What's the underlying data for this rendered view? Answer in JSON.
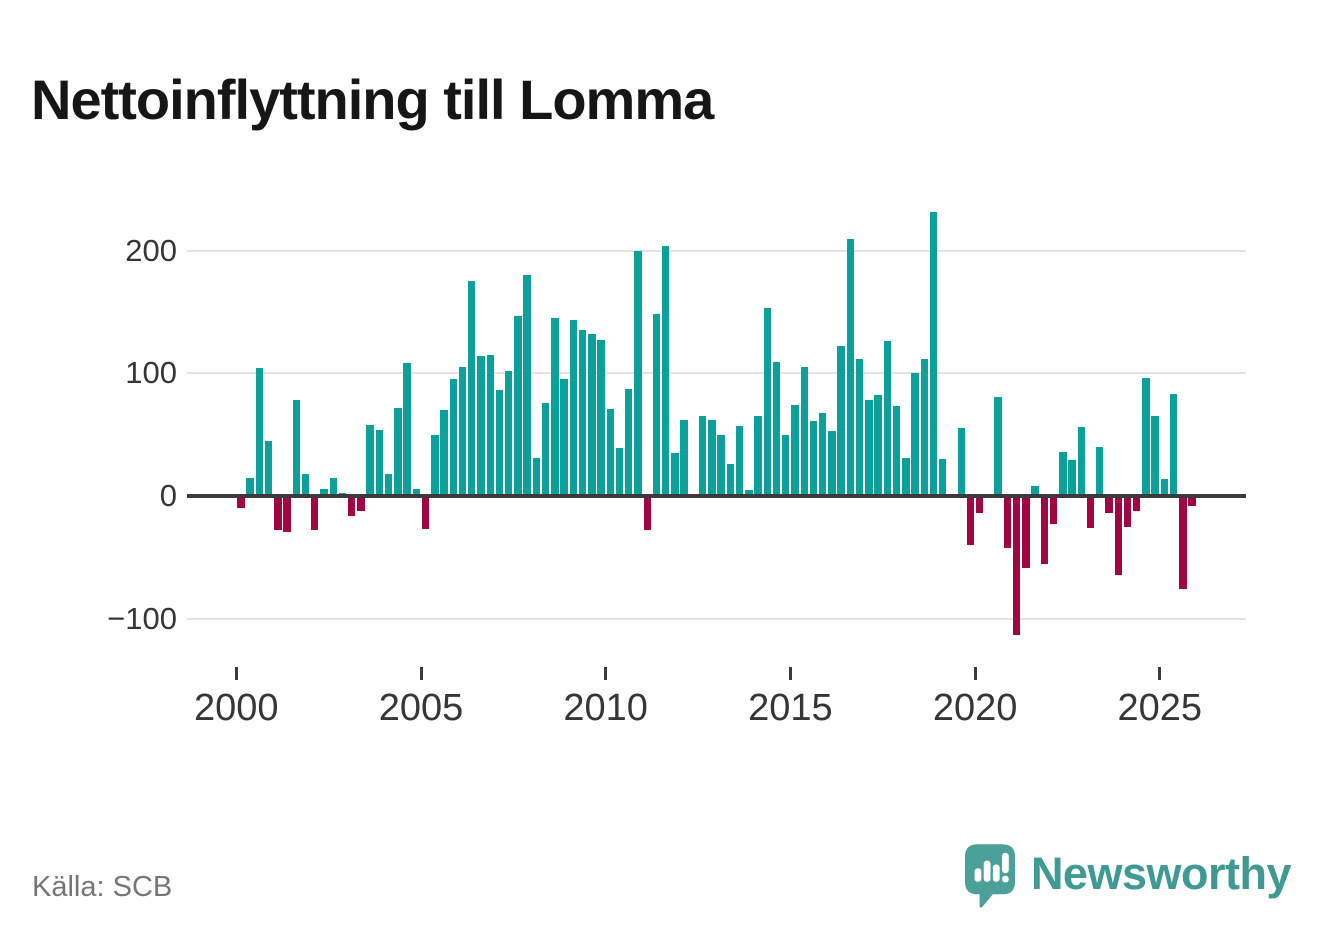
{
  "title": "Nettoinflyttning till Lomma",
  "source_label": "Källa: SCB",
  "brand": {
    "name": "Newsworthy",
    "icon": "newsworthy-speech-bubble-bar-chart-icon",
    "text_color": "#3e9a92",
    "icon_color": "#4ba19a"
  },
  "colors": {
    "positive_bar": "#0ba09a",
    "negative_bar": "#a10643",
    "gridline": "#e4e4e4",
    "zero_axis": "#3b3b3b",
    "axis_text": "#363636",
    "source_text": "#767676",
    "title_text": "#161616"
  },
  "chart_data": {
    "type": "bar",
    "title": "Nettoinflyttning till Lomma",
    "frequency": "quarterly",
    "start": "2000Q1",
    "end": "2025Q4",
    "xlabel": "",
    "ylabel": "",
    "x_ticks": [
      2000,
      2005,
      2010,
      2015,
      2020,
      2025
    ],
    "y_ticks": [
      200,
      100,
      0,
      -100
    ],
    "y_tick_labels": [
      "200",
      "100",
      "0",
      "−100"
    ],
    "ylim": [
      -135,
      250
    ],
    "grid": "horizontal",
    "legend": "none",
    "positive_color": "#0ba09a",
    "negative_color": "#a10643",
    "values_by_year": [
      {
        "year": 2000,
        "quarters": [
          -10,
          15,
          104,
          45
        ]
      },
      {
        "year": 2001,
        "quarters": [
          -28,
          -29,
          78,
          18
        ]
      },
      {
        "year": 2002,
        "quarters": [
          -28,
          6,
          15,
          2
        ]
      },
      {
        "year": 2003,
        "quarters": [
          -16,
          -12,
          58,
          54
        ]
      },
      {
        "year": 2004,
        "quarters": [
          18,
          72,
          108,
          6
        ]
      },
      {
        "year": 2005,
        "quarters": [
          -27,
          50,
          70,
          95
        ]
      },
      {
        "year": 2006,
        "quarters": [
          105,
          175,
          114,
          115
        ]
      },
      {
        "year": 2007,
        "quarters": [
          86,
          102,
          147,
          180
        ]
      },
      {
        "year": 2008,
        "quarters": [
          31,
          76,
          145,
          95
        ]
      },
      {
        "year": 2009,
        "quarters": [
          143,
          135,
          132,
          127
        ]
      },
      {
        "year": 2010,
        "quarters": [
          71,
          39,
          87,
          200
        ]
      },
      {
        "year": 2011,
        "quarters": [
          -28,
          148,
          204,
          35
        ]
      },
      {
        "year": 2012,
        "quarters": [
          62,
          0,
          65,
          62
        ]
      },
      {
        "year": 2013,
        "quarters": [
          50,
          26,
          57,
          5
        ]
      },
      {
        "year": 2014,
        "quarters": [
          65,
          153,
          109,
          50
        ]
      },
      {
        "year": 2015,
        "quarters": [
          74,
          105,
          61,
          68
        ]
      },
      {
        "year": 2016,
        "quarters": [
          53,
          122,
          209,
          112
        ]
      },
      {
        "year": 2017,
        "quarters": [
          78,
          82,
          126,
          73
        ]
      },
      {
        "year": 2018,
        "quarters": [
          31,
          100,
          112,
          231
        ]
      },
      {
        "year": 2019,
        "quarters": [
          30,
          0,
          55,
          -40
        ]
      },
      {
        "year": 2020,
        "quarters": [
          -14,
          0,
          81,
          -42
        ]
      },
      {
        "year": 2021,
        "quarters": [
          -113,
          -59,
          8,
          -55
        ]
      },
      {
        "year": 2022,
        "quarters": [
          -23,
          36,
          29,
          56
        ]
      },
      {
        "year": 2023,
        "quarters": [
          -26,
          40,
          -14,
          -64
        ]
      },
      {
        "year": 2024,
        "quarters": [
          -25,
          -12,
          96,
          65
        ]
      },
      {
        "year": 2025,
        "quarters": [
          14,
          83,
          -76,
          -8
        ]
      }
    ]
  }
}
